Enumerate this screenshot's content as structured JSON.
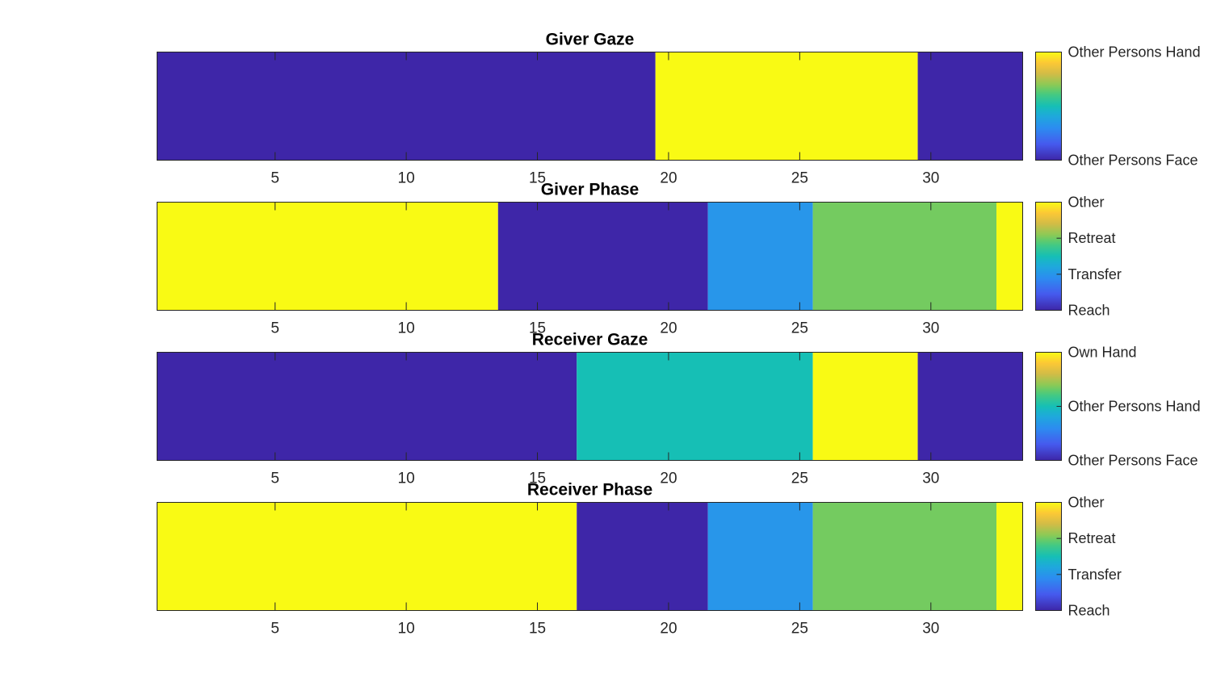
{
  "chart_data": [
    {
      "type": "heatmap",
      "title": "Giver Gaze",
      "xlim": [
        0.5,
        33.5
      ],
      "xticks": [
        5,
        10,
        15,
        20,
        25,
        30
      ],
      "segments": [
        {
          "x_start": 1,
          "x_end": 19,
          "level": 0
        },
        {
          "x_start": 20,
          "x_end": 29,
          "level": 1
        },
        {
          "x_start": 30,
          "x_end": 33,
          "level": 0
        }
      ],
      "levels": [
        0,
        1
      ],
      "colorbar": {
        "clim": [
          0,
          1
        ],
        "ticks": [
          {
            "value": 0,
            "label": "Other Persons Face"
          },
          {
            "value": 1,
            "label": "Other Persons Hand"
          }
        ]
      }
    },
    {
      "type": "heatmap",
      "title": "Giver Phase",
      "xlim": [
        0.5,
        33.5
      ],
      "xticks": [
        5,
        10,
        15,
        20,
        25,
        30
      ],
      "segments": [
        {
          "x_start": 1,
          "x_end": 13,
          "level": 3
        },
        {
          "x_start": 14,
          "x_end": 21,
          "level": 0
        },
        {
          "x_start": 22,
          "x_end": 25,
          "level": 1
        },
        {
          "x_start": 26,
          "x_end": 32,
          "level": 2
        },
        {
          "x_start": 33,
          "x_end": 33,
          "level": 3
        }
      ],
      "levels": [
        0,
        1,
        2,
        3
      ],
      "colorbar": {
        "clim": [
          0,
          3
        ],
        "ticks": [
          {
            "value": 0,
            "label": "Reach"
          },
          {
            "value": 1,
            "label": "Transfer"
          },
          {
            "value": 2,
            "label": "Retreat"
          },
          {
            "value": 3,
            "label": "Other"
          }
        ]
      }
    },
    {
      "type": "heatmap",
      "title": "Receiver Gaze",
      "xlim": [
        0.5,
        33.5
      ],
      "xticks": [
        5,
        10,
        15,
        20,
        25,
        30
      ],
      "segments": [
        {
          "x_start": 1,
          "x_end": 16,
          "level": 0
        },
        {
          "x_start": 17,
          "x_end": 25,
          "level": 1
        },
        {
          "x_start": 26,
          "x_end": 29,
          "level": 2
        },
        {
          "x_start": 30,
          "x_end": 33,
          "level": 0
        }
      ],
      "levels": [
        0,
        1,
        2
      ],
      "colorbar": {
        "clim": [
          0,
          2
        ],
        "ticks": [
          {
            "value": 0,
            "label": "Other Persons Face"
          },
          {
            "value": 1,
            "label": "Other Persons Hand"
          },
          {
            "value": 2,
            "label": "Own Hand"
          }
        ]
      }
    },
    {
      "type": "heatmap",
      "title": "Receiver Phase",
      "xlim": [
        0.5,
        33.5
      ],
      "xticks": [
        5,
        10,
        15,
        20,
        25,
        30
      ],
      "segments": [
        {
          "x_start": 1,
          "x_end": 16,
          "level": 3
        },
        {
          "x_start": 17,
          "x_end": 21,
          "level": 0
        },
        {
          "x_start": 22,
          "x_end": 25,
          "level": 1
        },
        {
          "x_start": 26,
          "x_end": 32,
          "level": 2
        },
        {
          "x_start": 33,
          "x_end": 33,
          "level": 3
        }
      ],
      "levels": [
        0,
        1,
        2,
        3
      ],
      "colorbar": {
        "clim": [
          0,
          3
        ],
        "ticks": [
          {
            "value": 0,
            "label": "Reach"
          },
          {
            "value": 1,
            "label": "Transfer"
          },
          {
            "value": 2,
            "label": "Retreat"
          },
          {
            "value": 3,
            "label": "Other"
          }
        ]
      }
    }
  ],
  "colormap": "parula",
  "colors": {
    "axis": "#262626",
    "background": "#ffffff"
  }
}
